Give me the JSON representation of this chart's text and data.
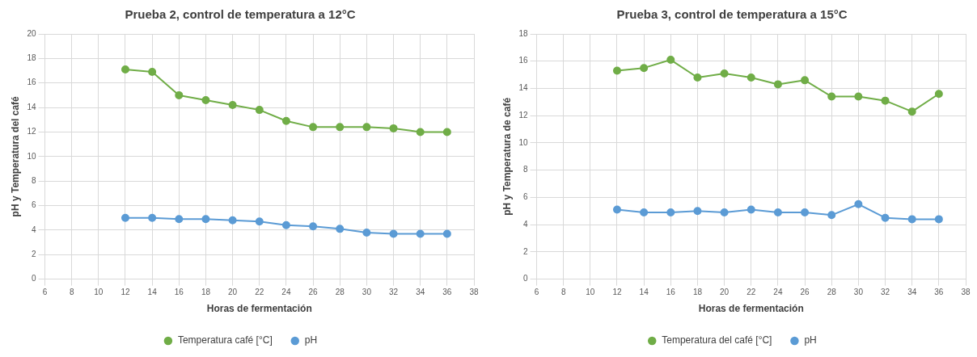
{
  "chart_data": [
    {
      "type": "line",
      "title": "Prueba 2, control de temperatura a 12°C",
      "xlabel": "Horas de fermentación",
      "ylabel": "pH y Temperatura del café",
      "x": [
        12,
        14,
        16,
        18,
        20,
        22,
        24,
        26,
        28,
        30,
        32,
        34,
        36
      ],
      "xlim": [
        6,
        38
      ],
      "xticks": [
        6,
        8,
        10,
        12,
        14,
        16,
        18,
        20,
        22,
        24,
        26,
        28,
        30,
        32,
        34,
        36,
        38
      ],
      "ylim": [
        0,
        20
      ],
      "yticks": [
        0,
        2,
        4,
        6,
        8,
        10,
        12,
        14,
        16,
        18,
        20
      ],
      "grid": true,
      "legend": "bottom",
      "marker": "circle",
      "line_style": "solid",
      "series": [
        {
          "name": "Temperatura café [°C]",
          "color": "#70ad47",
          "values": [
            17.1,
            16.9,
            15.0,
            14.6,
            14.2,
            13.8,
            12.9,
            12.4,
            12.4,
            12.4,
            12.3,
            12.0,
            12.0
          ]
        },
        {
          "name": "pH",
          "color": "#5b9bd5",
          "values": [
            5.0,
            5.0,
            4.9,
            4.9,
            4.8,
            4.7,
            4.4,
            4.3,
            4.1,
            3.8,
            3.7,
            3.7,
            3.7
          ]
        }
      ]
    },
    {
      "type": "line",
      "title": "Prueba 3, control de temperatura a 15°C",
      "xlabel": "Horas de fermentación",
      "ylabel": "pH y Temperatura de café",
      "x": [
        12,
        14,
        16,
        18,
        20,
        22,
        24,
        26,
        28,
        30,
        32,
        34,
        36
      ],
      "xlim": [
        6,
        38
      ],
      "xticks": [
        6,
        8,
        10,
        12,
        14,
        16,
        18,
        20,
        22,
        24,
        26,
        28,
        30,
        32,
        34,
        36,
        38
      ],
      "ylim": [
        0,
        18
      ],
      "yticks": [
        0,
        2,
        4,
        6,
        8,
        10,
        12,
        14,
        16,
        18
      ],
      "grid": true,
      "legend": "bottom",
      "marker": "circle",
      "line_style": "solid",
      "series": [
        {
          "name": "Temperatura del café [°C]",
          "color": "#70ad47",
          "values": [
            15.3,
            15.5,
            16.1,
            14.8,
            15.1,
            14.8,
            14.3,
            14.6,
            13.4,
            13.4,
            13.1,
            12.3,
            13.6
          ]
        },
        {
          "name": "pH",
          "color": "#5b9bd5",
          "values": [
            5.1,
            4.9,
            4.9,
            5.0,
            4.9,
            5.1,
            4.9,
            4.9,
            4.7,
            5.5,
            4.5,
            4.4,
            4.4
          ]
        }
      ]
    }
  ]
}
